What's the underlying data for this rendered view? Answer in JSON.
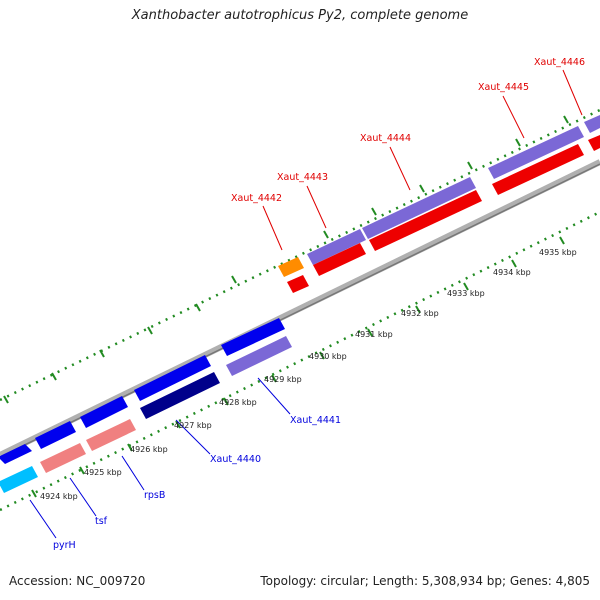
{
  "title": "Xanthobacter autotrophicus Py2, complete genome",
  "footer": {
    "accession": "Accession: NC_009720",
    "topology": "Topology: circular; Length: 5,308,934 bp; Genes: 4,805"
  },
  "colors": {
    "backbone": "#9a9a9a",
    "tick": "#228b22",
    "forward_gene": "#0000ee",
    "forward_gene_light": "#7b68d6",
    "reverse_gene": "#ee0000",
    "gene_label_forward": "#e00000",
    "gene_label_reverse": "#0000dd",
    "pink_gene": "#f08080",
    "dark_gene": "#00008b",
    "orange_gene": "#ff8c00",
    "cyan_gene": "#00bfff"
  },
  "tick_labels": [
    "4924 kbp",
    "4925 kbp",
    "4926 kbp",
    "4927 kbp",
    "4928 kbp",
    "4929 kbp",
    "4930 kbp",
    "4931 kbp",
    "4932 kbp",
    "4933 kbp",
    "4934 kbp",
    "4935 kbp"
  ],
  "gene_labels_top": [
    "Xaut_4442",
    "Xaut_4443",
    "Xaut_4444",
    "Xaut_4445",
    "Xaut_4446"
  ],
  "gene_labels_bottom": [
    "pyrH",
    "tsf",
    "rpsB",
    "Xaut_4440",
    "Xaut_4441"
  ]
}
